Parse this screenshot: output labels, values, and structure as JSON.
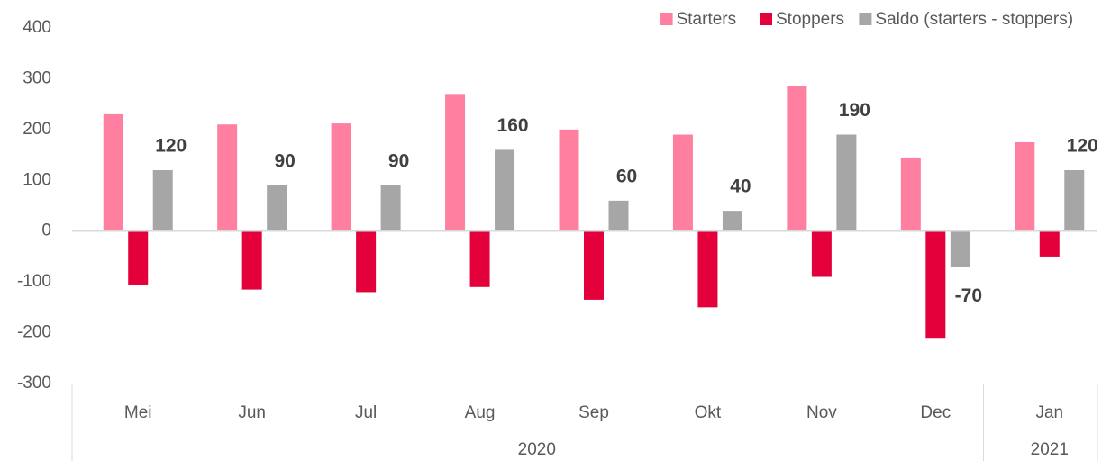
{
  "chart_data": {
    "type": "bar",
    "categories": [
      "Mei",
      "Jun",
      "Jul",
      "Aug",
      "Sep",
      "Okt",
      "Nov",
      "Dec",
      "Jan"
    ],
    "category_groups": [
      {
        "label": "2020",
        "count": 8
      },
      {
        "label": "2021",
        "count": 1
      }
    ],
    "series": [
      {
        "name": "Starters",
        "color": "#ff7fa0",
        "values": [
          230,
          210,
          212,
          270,
          200,
          190,
          285,
          145,
          175
        ]
      },
      {
        "name": "Stoppers",
        "color": "#e4003a",
        "values": [
          -105,
          -115,
          -120,
          -110,
          -135,
          -150,
          -90,
          -210,
          -50
        ]
      },
      {
        "name": "Saldo (starters - stoppers)",
        "color": "#a6a6a6",
        "values": [
          120,
          90,
          90,
          160,
          60,
          40,
          190,
          -70,
          120
        ],
        "data_labels": true
      }
    ],
    "ylim": [
      -300,
      400
    ],
    "yticks": [
      -300,
      -200,
      -100,
      0,
      100,
      200,
      300,
      400
    ],
    "grid": false,
    "legend": "top-right"
  }
}
